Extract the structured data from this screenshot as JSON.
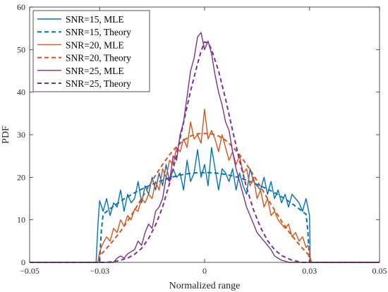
{
  "chart_data": {
    "type": "line",
    "xlabel": "Normalized range",
    "ylabel": "PDF",
    "xlim": [
      -0.05,
      0.05
    ],
    "ylim": [
      0,
      60
    ],
    "xticks": [
      -0.05,
      -0.03,
      0,
      0.03,
      0.05
    ],
    "xtick_labels": [
      "−0.05",
      "−0.03",
      "0",
      "0.03",
      "0.05"
    ],
    "yticks": [
      0,
      10,
      20,
      30,
      40,
      50,
      60
    ],
    "ytick_labels": [
      "0",
      "10",
      "20",
      "30",
      "40",
      "50",
      "60"
    ],
    "grid": false,
    "legend_position": "top-left",
    "colors": {
      "snr15": "#0072BD",
      "snr20": "#D95319",
      "snr25": "#7E2F8E"
    },
    "series": [
      {
        "name": "SNR=15, MLE",
        "style": "solid",
        "color": "#0072BD",
        "x": [
          -0.05,
          -0.031,
          -0.0305,
          -0.03,
          -0.029,
          -0.028,
          -0.027,
          -0.026,
          -0.025,
          -0.024,
          -0.023,
          -0.022,
          -0.021,
          -0.02,
          -0.019,
          -0.018,
          -0.017,
          -0.016,
          -0.015,
          -0.014,
          -0.013,
          -0.012,
          -0.011,
          -0.01,
          -0.009,
          -0.008,
          -0.007,
          -0.006,
          -0.005,
          -0.004,
          -0.003,
          -0.002,
          -0.001,
          0,
          0.001,
          0.002,
          0.003,
          0.004,
          0.005,
          0.006,
          0.007,
          0.008,
          0.009,
          0.01,
          0.011,
          0.012,
          0.013,
          0.014,
          0.015,
          0.016,
          0.017,
          0.018,
          0.019,
          0.02,
          0.021,
          0.022,
          0.023,
          0.024,
          0.025,
          0.026,
          0.027,
          0.028,
          0.029,
          0.0295,
          0.03,
          0.0302,
          0.05
        ],
        "y": [
          0,
          0,
          8.5,
          14.5,
          12,
          15,
          11,
          14,
          13,
          17,
          12,
          16,
          14,
          15,
          19,
          14,
          18,
          16,
          20,
          17,
          21,
          18,
          23,
          19,
          22,
          20,
          21,
          17,
          24,
          19,
          21,
          26.5,
          20,
          23,
          18,
          27,
          22,
          17,
          22,
          21,
          19,
          22,
          17,
          21,
          18,
          16,
          22,
          19,
          18,
          17,
          20,
          16,
          19,
          15,
          17,
          14,
          16,
          13,
          16,
          15,
          14,
          12,
          15,
          13,
          11,
          0,
          0
        ]
      },
      {
        "name": "SNR=15, Theory",
        "style": "dashed",
        "color": "#0072BD",
        "x": [
          -0.05,
          -0.03,
          -0.0295,
          -0.029,
          -0.027,
          -0.025,
          -0.023,
          -0.021,
          -0.019,
          -0.017,
          -0.015,
          -0.013,
          -0.011,
          -0.009,
          -0.007,
          -0.005,
          -0.003,
          -0.001,
          0,
          0.001,
          0.003,
          0.005,
          0.007,
          0.009,
          0.011,
          0.013,
          0.015,
          0.017,
          0.019,
          0.021,
          0.023,
          0.025,
          0.027,
          0.029,
          0.0295,
          0.03,
          0.05
        ],
        "y": [
          0,
          0,
          7.5,
          11.3,
          12.6,
          13.8,
          14.9,
          15.9,
          16.8,
          17.6,
          18.3,
          19.0,
          19.6,
          20.1,
          20.5,
          20.8,
          21.0,
          21.1,
          21.1,
          21.1,
          21.0,
          20.8,
          20.5,
          20.1,
          19.6,
          19.0,
          18.3,
          17.6,
          16.8,
          15.9,
          14.9,
          13.8,
          12.6,
          11.3,
          7.5,
          0,
          0
        ]
      },
      {
        "name": "SNR=20, MLE",
        "style": "solid",
        "color": "#D95319",
        "x": [
          -0.05,
          -0.0305,
          -0.03,
          -0.029,
          -0.028,
          -0.027,
          -0.026,
          -0.025,
          -0.024,
          -0.023,
          -0.022,
          -0.021,
          -0.02,
          -0.019,
          -0.018,
          -0.017,
          -0.016,
          -0.015,
          -0.014,
          -0.013,
          -0.012,
          -0.011,
          -0.01,
          -0.009,
          -0.008,
          -0.007,
          -0.006,
          -0.005,
          -0.004,
          -0.003,
          -0.002,
          -0.001,
          0,
          0.001,
          0.002,
          0.003,
          0.004,
          0.005,
          0.006,
          0.007,
          0.008,
          0.009,
          0.01,
          0.011,
          0.012,
          0.013,
          0.014,
          0.015,
          0.016,
          0.017,
          0.018,
          0.019,
          0.02,
          0.021,
          0.022,
          0.023,
          0.024,
          0.025,
          0.026,
          0.027,
          0.028,
          0.029,
          0.0295,
          0.03,
          0.0302,
          0.05
        ],
        "y": [
          0,
          0,
          2.5,
          4.5,
          6,
          5,
          8,
          7,
          10,
          8.5,
          11,
          10,
          12.5,
          12,
          15,
          14,
          16,
          15,
          19,
          17,
          22,
          20,
          24,
          23,
          27,
          26,
          29,
          27,
          33,
          29,
          30,
          28,
          36,
          29,
          31,
          29,
          26,
          30,
          27,
          24,
          26,
          23,
          25,
          21,
          22,
          18,
          20,
          15,
          17,
          13,
          15,
          11,
          12,
          10,
          9,
          8,
          9,
          6,
          7,
          5,
          6,
          3.5,
          4,
          3,
          0,
          0
        ]
      },
      {
        "name": "SNR=20, Theory",
        "style": "dashed",
        "color": "#D95319",
        "x": [
          -0.05,
          -0.0305,
          -0.03,
          -0.028,
          -0.026,
          -0.024,
          -0.022,
          -0.02,
          -0.018,
          -0.016,
          -0.014,
          -0.012,
          -0.01,
          -0.008,
          -0.006,
          -0.004,
          -0.002,
          0,
          0.002,
          0.004,
          0.006,
          0.008,
          0.01,
          0.012,
          0.014,
          0.016,
          0.018,
          0.02,
          0.022,
          0.024,
          0.026,
          0.028,
          0.03,
          0.0305,
          0.05
        ],
        "y": [
          0,
          0,
          1.5,
          3.3,
          5.2,
          7.3,
          9.7,
          12.3,
          15.0,
          17.8,
          20.5,
          23.0,
          25.3,
          27.2,
          28.7,
          29.7,
          30.2,
          30.3,
          30.2,
          29.7,
          28.7,
          27.2,
          25.3,
          23.0,
          20.5,
          17.8,
          15.0,
          12.3,
          9.7,
          7.3,
          5.2,
          3.3,
          1.5,
          0,
          0
        ]
      },
      {
        "name": "SNR=25, MLE",
        "style": "solid",
        "color": "#7E2F8E",
        "x": [
          -0.05,
          -0.026,
          -0.025,
          -0.024,
          -0.023,
          -0.022,
          -0.021,
          -0.02,
          -0.019,
          -0.018,
          -0.017,
          -0.016,
          -0.015,
          -0.014,
          -0.013,
          -0.012,
          -0.011,
          -0.01,
          -0.009,
          -0.008,
          -0.007,
          -0.006,
          -0.005,
          -0.004,
          -0.003,
          -0.002,
          -0.001,
          0,
          0.001,
          0.002,
          0.003,
          0.004,
          0.005,
          0.006,
          0.007,
          0.008,
          0.009,
          0.01,
          0.011,
          0.012,
          0.013,
          0.014,
          0.015,
          0.016,
          0.017,
          0.018,
          0.019,
          0.02,
          0.021,
          0.022,
          0.023,
          0.024,
          0.05
        ],
        "y": [
          0,
          0,
          1,
          1.5,
          1,
          2,
          2.5,
          3,
          5,
          4,
          7,
          9,
          8,
          12,
          13,
          15,
          20,
          19,
          25,
          24,
          30,
          33,
          39,
          45,
          48,
          53,
          54,
          50,
          52,
          49,
          44,
          40,
          37,
          33,
          31,
          26,
          22,
          19,
          16,
          13,
          11,
          9,
          7,
          6,
          5,
          4,
          3,
          1.5,
          1,
          0.5,
          0.3,
          0,
          0
        ]
      },
      {
        "name": "SNR=25, Theory",
        "style": "dashed",
        "color": "#7E2F8E",
        "x": [
          -0.05,
          -0.028,
          -0.025,
          -0.022,
          -0.02,
          -0.018,
          -0.016,
          -0.014,
          -0.012,
          -0.01,
          -0.008,
          -0.006,
          -0.004,
          -0.002,
          -0.001,
          0,
          0.001,
          0.002,
          0.004,
          0.006,
          0.008,
          0.01,
          0.012,
          0.014,
          0.016,
          0.018,
          0.02,
          0.022,
          0.025,
          0.028,
          0.05
        ],
        "y": [
          0,
          0,
          0.3,
          1.0,
          1.9,
          3.3,
          5.6,
          8.8,
          13.0,
          18.6,
          25.3,
          32.9,
          40.3,
          46.7,
          49.6,
          51.8,
          51.6,
          50.0,
          45.0,
          38.4,
          31.0,
          23.9,
          17.6,
          12.3,
          8.2,
          5.1,
          3.0,
          1.6,
          0.5,
          0,
          0
        ]
      }
    ]
  }
}
